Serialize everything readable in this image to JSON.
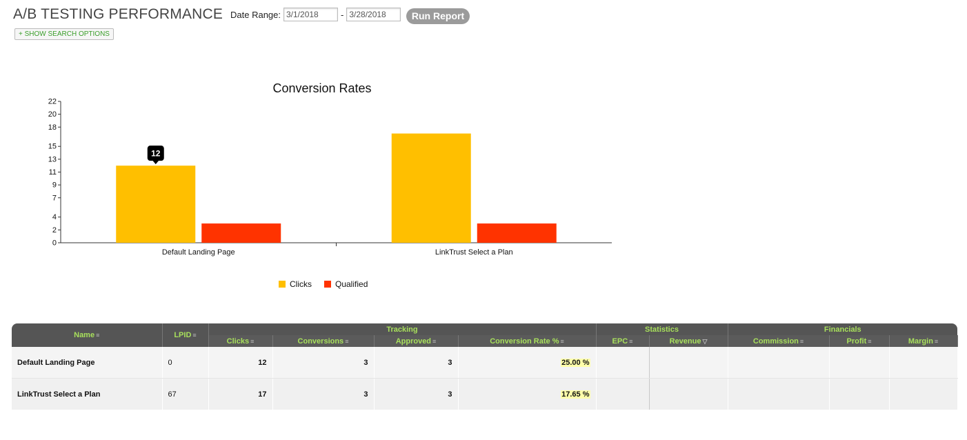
{
  "page": {
    "title": "A/B TESTING PERFORMANCE"
  },
  "filters": {
    "date_range_label": "Date Range:",
    "start_date": "3/1/2018",
    "separator": "-",
    "end_date": "3/28/2018",
    "run_button": "Run Report",
    "search_options": "+ SHOW SEARCH OPTIONS"
  },
  "chart_data": {
    "type": "bar",
    "title": "Conversion Rates",
    "categories": [
      "Default Landing Page",
      "LinkTrust Select a Plan"
    ],
    "series": [
      {
        "name": "Clicks",
        "values": [
          12,
          17
        ],
        "color": "#ffbf00"
      },
      {
        "name": "Qualified",
        "values": [
          3,
          3
        ],
        "color": "#ff3300"
      }
    ],
    "y_ticks": [
      0,
      2,
      4,
      7,
      9,
      11,
      13,
      15,
      18,
      20,
      22
    ],
    "ylim": [
      0,
      22
    ],
    "tooltip": {
      "series": "Clicks",
      "category": "Default Landing Page",
      "value": "12"
    },
    "legend_position": "bottom"
  },
  "table": {
    "groups": {
      "name": "Name",
      "lpid": "LPID",
      "tracking": "Tracking",
      "statistics": "Statistics",
      "financials": "Financials"
    },
    "columns": {
      "clicks": "Clicks",
      "conversions": "Conversions",
      "approved": "Approved",
      "conv_rate": "Conversion Rate %",
      "epc": "EPC",
      "revenue": "Revenue",
      "commission": "Commission",
      "profit": "Profit",
      "margin": "Margin"
    },
    "rows": [
      {
        "name": "Default Landing Page",
        "lpid": "0",
        "clicks": "12",
        "conversions": "3",
        "approved": "3",
        "conv_rate": "25.00 %",
        "epc": "",
        "revenue": "",
        "commission": "",
        "profit": "",
        "margin": ""
      },
      {
        "name": "LinkTrust Select a Plan",
        "lpid": "67",
        "clicks": "17",
        "conversions": "3",
        "approved": "3",
        "conv_rate": "17.65 %",
        "epc": "",
        "revenue": "",
        "commission": "",
        "profit": "",
        "margin": ""
      }
    ]
  }
}
